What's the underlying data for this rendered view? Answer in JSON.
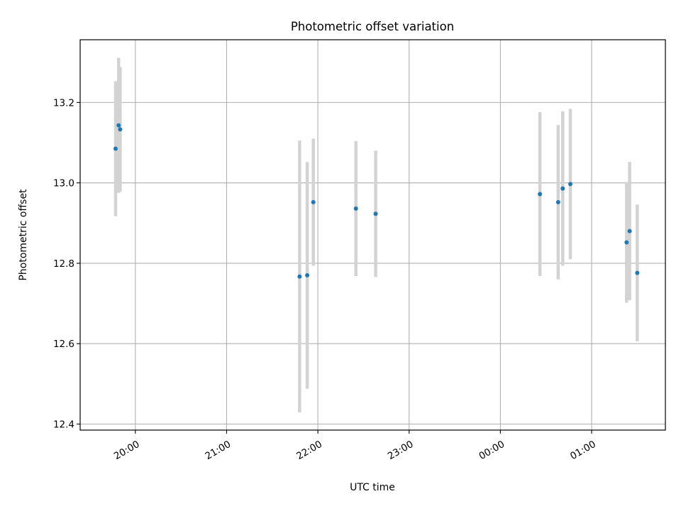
{
  "chart_data": {
    "type": "scatter",
    "title": "Photometric offset variation",
    "xlabel": "UTC time",
    "ylabel": "Photometric offset",
    "x_tick_labels": [
      "20:00",
      "21:00",
      "22:00",
      "23:00",
      "00:00",
      "01:00"
    ],
    "x_tick_minutes": [
      1200,
      1260,
      1320,
      1380,
      1440,
      1500
    ],
    "xlim_minutes": [
      1163.7,
      1548.5
    ],
    "y_ticks": [
      12.4,
      12.6,
      12.8,
      13.0,
      13.2
    ],
    "y_tick_labels": [
      "12.4",
      "12.6",
      "12.8",
      "13.0",
      "13.2"
    ],
    "ylim": [
      12.385,
      13.356
    ],
    "grid": true,
    "colors": {
      "point": "#1f77b4",
      "errorbar": "#d3d3d3",
      "grid": "#b0b0b0"
    },
    "points": [
      {
        "time": "19:47",
        "y": 13.085,
        "err": 0.168
      },
      {
        "time": "19:49",
        "y": 13.143,
        "err": 0.168
      },
      {
        "time": "19:50",
        "y": 13.133,
        "err": 0.155
      },
      {
        "time": "21:48",
        "y": 12.767,
        "err": 0.338
      },
      {
        "time": "21:53",
        "y": 12.77,
        "err": 0.282
      },
      {
        "time": "21:57",
        "y": 12.952,
        "err": 0.158
      },
      {
        "time": "22:25",
        "y": 12.936,
        "err": 0.168
      },
      {
        "time": "22:38",
        "y": 12.923,
        "err": 0.157
      },
      {
        "time": "00:26",
        "y": 12.972,
        "err": 0.204
      },
      {
        "time": "00:38",
        "y": 12.952,
        "err": 0.192
      },
      {
        "time": "00:41",
        "y": 12.986,
        "err": 0.192
      },
      {
        "time": "00:46",
        "y": 12.997,
        "err": 0.187
      },
      {
        "time": "01:23",
        "y": 12.852,
        "err": 0.15
      },
      {
        "time": "01:25",
        "y": 12.88,
        "err": 0.172
      },
      {
        "time": "01:30",
        "y": 12.776,
        "err": 0.17
      }
    ]
  }
}
